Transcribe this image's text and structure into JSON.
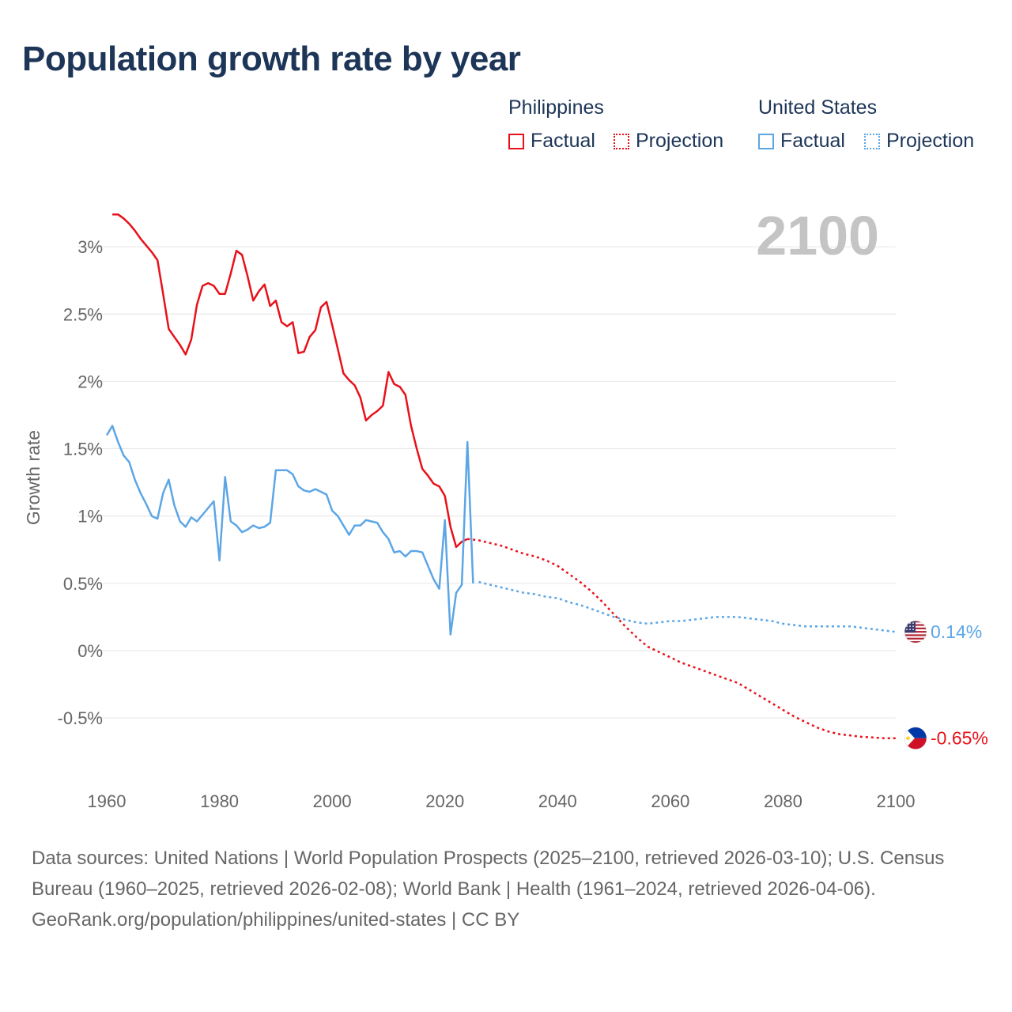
{
  "title": "Population growth rate by year",
  "legend": {
    "groups": [
      {
        "country": "Philippines",
        "color": "#e8111a",
        "factual_label": "Factual",
        "projection_label": "Projection"
      },
      {
        "country": "United States",
        "color": "#5ca6e6",
        "factual_label": "Factual",
        "projection_label": "Projection"
      }
    ]
  },
  "chart_data": {
    "type": "line",
    "title": "Population growth rate by year",
    "xlabel": "",
    "ylabel": "Growth rate",
    "xlim": [
      1960,
      2100
    ],
    "ylim": [
      -0.95,
      3.35
    ],
    "x_ticks": [
      1960,
      1980,
      2000,
      2020,
      2040,
      2060,
      2080,
      2100
    ],
    "y_ticks": [
      {
        "value": 3,
        "label": "3%"
      },
      {
        "value": 2.5,
        "label": "2.5%"
      },
      {
        "value": 2,
        "label": "2%"
      },
      {
        "value": 1.5,
        "label": "1.5%"
      },
      {
        "value": 1,
        "label": "1%"
      },
      {
        "value": 0.5,
        "label": "0.5%"
      },
      {
        "value": 0,
        "label": "0%"
      },
      {
        "value": -0.5,
        "label": "-0.5%"
      }
    ],
    "year_watermark": "2100",
    "series": [
      {
        "name": "Philippines",
        "color": "#e8111a",
        "end_label": "-0.65%",
        "flag": "philippines-flag-icon",
        "factual": [
          [
            1961,
            3.24
          ],
          [
            1962,
            3.24
          ],
          [
            1963,
            3.21
          ],
          [
            1964,
            3.17
          ],
          [
            1965,
            3.12
          ],
          [
            1966,
            3.06
          ],
          [
            1967,
            3.01
          ],
          [
            1968,
            2.96
          ],
          [
            1969,
            2.9
          ],
          [
            1970,
            2.65
          ],
          [
            1971,
            2.39
          ],
          [
            1972,
            2.33
          ],
          [
            1973,
            2.27
          ],
          [
            1974,
            2.2
          ],
          [
            1975,
            2.31
          ],
          [
            1976,
            2.57
          ],
          [
            1977,
            2.71
          ],
          [
            1978,
            2.73
          ],
          [
            1979,
            2.71
          ],
          [
            1980,
            2.65
          ],
          [
            1981,
            2.65
          ],
          [
            1982,
            2.8
          ],
          [
            1983,
            2.97
          ],
          [
            1984,
            2.94
          ],
          [
            1985,
            2.78
          ],
          [
            1986,
            2.6
          ],
          [
            1987,
            2.67
          ],
          [
            1988,
            2.72
          ],
          [
            1989,
            2.56
          ],
          [
            1990,
            2.6
          ],
          [
            1991,
            2.44
          ],
          [
            1992,
            2.41
          ],
          [
            1993,
            2.44
          ],
          [
            1994,
            2.21
          ],
          [
            1995,
            2.22
          ],
          [
            1996,
            2.33
          ],
          [
            1997,
            2.38
          ],
          [
            1998,
            2.55
          ],
          [
            1999,
            2.59
          ],
          [
            2000,
            2.42
          ],
          [
            2001,
            2.24
          ],
          [
            2002,
            2.06
          ],
          [
            2003,
            2.01
          ],
          [
            2004,
            1.97
          ],
          [
            2005,
            1.88
          ],
          [
            2006,
            1.71
          ],
          [
            2007,
            1.75
          ],
          [
            2008,
            1.78
          ],
          [
            2009,
            1.82
          ],
          [
            2010,
            2.07
          ],
          [
            2011,
            1.98
          ],
          [
            2012,
            1.96
          ],
          [
            2013,
            1.9
          ],
          [
            2014,
            1.67
          ],
          [
            2015,
            1.5
          ],
          [
            2016,
            1.35
          ],
          [
            2017,
            1.3
          ],
          [
            2018,
            1.24
          ],
          [
            2019,
            1.22
          ],
          [
            2020,
            1.15
          ],
          [
            2021,
            0.92
          ],
          [
            2022,
            0.77
          ],
          [
            2023,
            0.81
          ],
          [
            2024,
            0.83
          ]
        ],
        "projection": [
          [
            2024,
            0.83
          ],
          [
            2026,
            0.82
          ],
          [
            2028,
            0.8
          ],
          [
            2030,
            0.78
          ],
          [
            2032,
            0.75
          ],
          [
            2034,
            0.72
          ],
          [
            2036,
            0.7
          ],
          [
            2038,
            0.67
          ],
          [
            2040,
            0.63
          ],
          [
            2042,
            0.57
          ],
          [
            2044,
            0.51
          ],
          [
            2046,
            0.44
          ],
          [
            2048,
            0.36
          ],
          [
            2050,
            0.27
          ],
          [
            2052,
            0.18
          ],
          [
            2054,
            0.1
          ],
          [
            2056,
            0.03
          ],
          [
            2058,
            -0.01
          ],
          [
            2060,
            -0.05
          ],
          [
            2062,
            -0.09
          ],
          [
            2064,
            -0.12
          ],
          [
            2066,
            -0.15
          ],
          [
            2068,
            -0.18
          ],
          [
            2070,
            -0.21
          ],
          [
            2072,
            -0.24
          ],
          [
            2074,
            -0.29
          ],
          [
            2076,
            -0.34
          ],
          [
            2078,
            -0.39
          ],
          [
            2080,
            -0.44
          ],
          [
            2082,
            -0.49
          ],
          [
            2084,
            -0.53
          ],
          [
            2086,
            -0.57
          ],
          [
            2088,
            -0.6
          ],
          [
            2090,
            -0.62
          ],
          [
            2092,
            -0.63
          ],
          [
            2094,
            -0.64
          ],
          [
            2096,
            -0.645
          ],
          [
            2098,
            -0.65
          ],
          [
            2100,
            -0.65
          ]
        ]
      },
      {
        "name": "United States",
        "color": "#5ca6e6",
        "end_label": "0.14%",
        "flag": "united-states-flag-icon",
        "factual": [
          [
            1960,
            1.6
          ],
          [
            1961,
            1.67
          ],
          [
            1962,
            1.55
          ],
          [
            1963,
            1.45
          ],
          [
            1964,
            1.4
          ],
          [
            1965,
            1.27
          ],
          [
            1966,
            1.17
          ],
          [
            1967,
            1.09
          ],
          [
            1968,
            1.0
          ],
          [
            1969,
            0.98
          ],
          [
            1970,
            1.17
          ],
          [
            1971,
            1.27
          ],
          [
            1972,
            1.08
          ],
          [
            1973,
            0.96
          ],
          [
            1974,
            0.92
          ],
          [
            1975,
            0.99
          ],
          [
            1976,
            0.96
          ],
          [
            1977,
            1.01
          ],
          [
            1978,
            1.06
          ],
          [
            1979,
            1.11
          ],
          [
            1980,
            0.67
          ],
          [
            1981,
            1.29
          ],
          [
            1982,
            0.96
          ],
          [
            1983,
            0.93
          ],
          [
            1984,
            0.88
          ],
          [
            1985,
            0.9
          ],
          [
            1986,
            0.93
          ],
          [
            1987,
            0.91
          ],
          [
            1988,
            0.92
          ],
          [
            1989,
            0.95
          ],
          [
            1990,
            1.34
          ],
          [
            1991,
            1.34
          ],
          [
            1992,
            1.34
          ],
          [
            1993,
            1.31
          ],
          [
            1994,
            1.22
          ],
          [
            1995,
            1.19
          ],
          [
            1996,
            1.18
          ],
          [
            1997,
            1.2
          ],
          [
            1998,
            1.18
          ],
          [
            1999,
            1.16
          ],
          [
            2000,
            1.04
          ],
          [
            2001,
            1.0
          ],
          [
            2002,
            0.93
          ],
          [
            2003,
            0.86
          ],
          [
            2004,
            0.93
          ],
          [
            2005,
            0.93
          ],
          [
            2006,
            0.97
          ],
          [
            2007,
            0.96
          ],
          [
            2008,
            0.95
          ],
          [
            2009,
            0.88
          ],
          [
            2010,
            0.83
          ],
          [
            2011,
            0.73
          ],
          [
            2012,
            0.74
          ],
          [
            2013,
            0.7
          ],
          [
            2014,
            0.74
          ],
          [
            2015,
            0.74
          ],
          [
            2016,
            0.73
          ],
          [
            2017,
            0.63
          ],
          [
            2018,
            0.53
          ],
          [
            2019,
            0.46
          ],
          [
            2020,
            0.97
          ],
          [
            2021,
            0.12
          ],
          [
            2022,
            0.43
          ],
          [
            2023,
            0.49
          ],
          [
            2024,
            1.55
          ],
          [
            2025,
            0.5
          ]
        ],
        "projection": [
          [
            2026,
            0.51
          ],
          [
            2028,
            0.49
          ],
          [
            2030,
            0.47
          ],
          [
            2032,
            0.45
          ],
          [
            2034,
            0.43
          ],
          [
            2036,
            0.42
          ],
          [
            2038,
            0.4
          ],
          [
            2040,
            0.39
          ],
          [
            2042,
            0.36
          ],
          [
            2044,
            0.34
          ],
          [
            2046,
            0.31
          ],
          [
            2048,
            0.28
          ],
          [
            2050,
            0.25
          ],
          [
            2052,
            0.23
          ],
          [
            2054,
            0.21
          ],
          [
            2056,
            0.2
          ],
          [
            2058,
            0.21
          ],
          [
            2060,
            0.22
          ],
          [
            2062,
            0.22
          ],
          [
            2064,
            0.23
          ],
          [
            2066,
            0.24
          ],
          [
            2068,
            0.25
          ],
          [
            2070,
            0.25
          ],
          [
            2072,
            0.25
          ],
          [
            2074,
            0.24
          ],
          [
            2076,
            0.23
          ],
          [
            2078,
            0.22
          ],
          [
            2080,
            0.2
          ],
          [
            2082,
            0.19
          ],
          [
            2084,
            0.18
          ],
          [
            2086,
            0.18
          ],
          [
            2088,
            0.18
          ],
          [
            2090,
            0.18
          ],
          [
            2092,
            0.18
          ],
          [
            2094,
            0.17
          ],
          [
            2096,
            0.16
          ],
          [
            2098,
            0.15
          ],
          [
            2100,
            0.14
          ]
        ]
      }
    ]
  },
  "sources": {
    "text": "Data sources: United Nations | World Population Prospects (2025–2100, retrieved 2026-03-10); U.S. Census Bureau (1960–2025, retrieved 2026-02-08); World Bank | Health (1961–2024, retrieved 2026-04-06).",
    "credit": "GeoRank.org/population/philippines/united-states | CC BY"
  }
}
